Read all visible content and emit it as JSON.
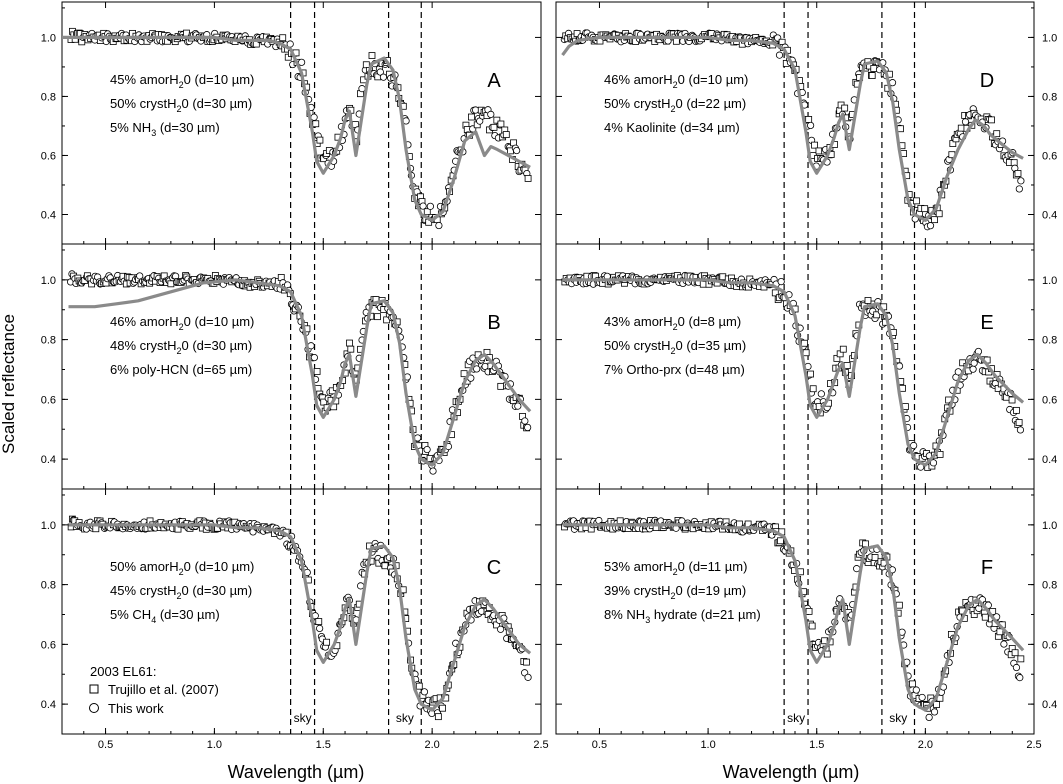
{
  "figure": {
    "ylabel": "Scaled reflectance",
    "xlabel_parts": [
      "Wavelength (",
      "µm",
      ")"
    ],
    "sky_label": "sky",
    "legend": {
      "title": "2003 EL61:",
      "entries": [
        {
          "marker": "square",
          "label": "Trujillo et al. (2007)"
        },
        {
          "marker": "circle",
          "label": "This work"
        }
      ]
    }
  },
  "chart_data": [
    {
      "type": "scatter",
      "panel": "A",
      "xlim": [
        0.3,
        2.5
      ],
      "ylim": [
        0.3,
        1.12
      ],
      "xticks": [
        0.5,
        1.0,
        1.5,
        2.0,
        2.5
      ],
      "yticks": [
        0.4,
        0.6,
        0.8,
        1.0
      ],
      "sky_lines": [
        1.35,
        1.46,
        1.8,
        1.95
      ],
      "model_lines": [
        [
          {
            "p": "45% amorH",
            "sub": "2",
            "s": "0 (d=10 ",
            "mu": "µ",
            "e": "m)"
          }
        ],
        [
          {
            "p": "50% crystH",
            "sub": "2",
            "s": "0 (d=30 ",
            "mu": "µ",
            "e": "m)"
          }
        ],
        [
          {
            "p": "5% NH",
            "sub": "3",
            "s": " (d=30 ",
            "mu": "µ",
            "e": "m)"
          }
        ]
      ],
      "model_curve": {
        "x": [
          0.3,
          0.55,
          0.8,
          1.0,
          1.1,
          1.25,
          1.3,
          1.35,
          1.4,
          1.45,
          1.47,
          1.5,
          1.55,
          1.58,
          1.6,
          1.62,
          1.65,
          1.7,
          1.72,
          1.78,
          1.82,
          1.85,
          1.88,
          1.92,
          1.95,
          2.0,
          2.05,
          2.1,
          2.15,
          2.2,
          2.22,
          2.24,
          2.27,
          2.3,
          2.35,
          2.4,
          2.45
        ],
        "y": [
          1.0,
          1.0,
          1.0,
          1.0,
          0.99,
          0.99,
          0.98,
          0.96,
          0.88,
          0.68,
          0.58,
          0.54,
          0.6,
          0.66,
          0.72,
          0.75,
          0.6,
          0.84,
          0.91,
          0.93,
          0.89,
          0.79,
          0.62,
          0.45,
          0.4,
          0.38,
          0.41,
          0.52,
          0.65,
          0.68,
          0.64,
          0.6,
          0.63,
          0.62,
          0.6,
          0.58,
          0.56
        ]
      }
    },
    {
      "type": "scatter",
      "panel": "D",
      "xlim": [
        0.3,
        2.5
      ],
      "ylim": [
        0.3,
        1.12
      ],
      "xticks": [
        0.5,
        1.0,
        1.5,
        2.0,
        2.5
      ],
      "yticks": [
        0.4,
        0.6,
        0.8,
        1.0
      ],
      "sky_lines": [
        1.35,
        1.46,
        1.8,
        1.95
      ],
      "model_lines": [
        [
          {
            "p": "46% amorH",
            "sub": "2",
            "s": "0 (d=10 ",
            "mu": "µ",
            "e": "m)"
          }
        ],
        [
          {
            "p": "50% crystH",
            "sub": "2",
            "s": "0 (d=22 ",
            "mu": "µ",
            "e": "m)"
          }
        ],
        [
          {
            "p": "4% Kaolinite (d=34 ",
            "sub": "",
            "s": "",
            "mu": "µ",
            "e": "m)"
          }
        ]
      ],
      "model_curve": {
        "x": [
          0.33,
          0.36,
          0.4,
          0.5,
          0.7,
          1.0,
          1.1,
          1.2,
          1.3,
          1.35,
          1.4,
          1.45,
          1.47,
          1.5,
          1.55,
          1.58,
          1.6,
          1.62,
          1.65,
          1.7,
          1.72,
          1.78,
          1.82,
          1.85,
          1.88,
          1.92,
          1.95,
          2.0,
          2.05,
          2.1,
          2.15,
          2.2,
          2.23,
          2.27,
          2.3,
          2.35,
          2.4,
          2.45
        ],
        "y": [
          0.94,
          0.97,
          0.99,
          1.0,
          1.0,
          1.0,
          0.99,
          0.99,
          0.98,
          0.96,
          0.89,
          0.68,
          0.58,
          0.54,
          0.6,
          0.66,
          0.71,
          0.74,
          0.62,
          0.84,
          0.91,
          0.92,
          0.88,
          0.78,
          0.62,
          0.45,
          0.4,
          0.38,
          0.42,
          0.53,
          0.62,
          0.69,
          0.72,
          0.7,
          0.67,
          0.64,
          0.61,
          0.59
        ]
      }
    },
    {
      "type": "scatter",
      "panel": "B",
      "xlim": [
        0.3,
        2.5
      ],
      "ylim": [
        0.3,
        1.12
      ],
      "xticks": [
        0.5,
        1.0,
        1.5,
        2.0,
        2.5
      ],
      "yticks": [
        0.4,
        0.6,
        0.8,
        1.0
      ],
      "sky_lines": [
        1.35,
        1.46,
        1.8,
        1.95
      ],
      "model_lines": [
        [
          {
            "p": "46% amorH",
            "sub": "2",
            "s": "0 (d=10 ",
            "mu": "µ",
            "e": "m)"
          }
        ],
        [
          {
            "p": "48% crystH",
            "sub": "2",
            "s": "0 (d=30 ",
            "mu": "µ",
            "e": "m)"
          }
        ],
        [
          {
            "p": "6% poly-HCN (d=65 ",
            "sub": "",
            "s": "",
            "mu": "µ",
            "e": "m)"
          }
        ]
      ],
      "model_curve": {
        "x": [
          0.33,
          0.45,
          0.55,
          0.65,
          0.75,
          0.85,
          0.95,
          1.1,
          1.2,
          1.3,
          1.35,
          1.4,
          1.45,
          1.47,
          1.5,
          1.55,
          1.58,
          1.6,
          1.62,
          1.65,
          1.7,
          1.72,
          1.78,
          1.82,
          1.85,
          1.88,
          1.92,
          1.95,
          2.0,
          2.05,
          2.1,
          2.15,
          2.2,
          2.24,
          2.28,
          2.32,
          2.36,
          2.4,
          2.45
        ],
        "y": [
          0.91,
          0.91,
          0.92,
          0.93,
          0.95,
          0.97,
          0.99,
          1.0,
          0.99,
          0.98,
          0.96,
          0.88,
          0.68,
          0.58,
          0.54,
          0.6,
          0.66,
          0.72,
          0.75,
          0.61,
          0.84,
          0.92,
          0.93,
          0.89,
          0.79,
          0.62,
          0.45,
          0.4,
          0.38,
          0.42,
          0.54,
          0.66,
          0.73,
          0.75,
          0.72,
          0.68,
          0.64,
          0.6,
          0.56
        ]
      }
    },
    {
      "type": "scatter",
      "panel": "E",
      "xlim": [
        0.3,
        2.5
      ],
      "ylim": [
        0.3,
        1.12
      ],
      "xticks": [
        0.5,
        1.0,
        1.5,
        2.0,
        2.5
      ],
      "yticks": [
        0.4,
        0.6,
        0.8,
        1.0
      ],
      "sky_lines": [
        1.35,
        1.46,
        1.8,
        1.95
      ],
      "model_lines": [
        [
          {
            "p": "43% amorH",
            "sub": "2",
            "s": "0 (d=8 ",
            "mu": "µ",
            "e": "m)"
          }
        ],
        [
          {
            "p": "50% crystH",
            "sub": "2",
            "s": "0 (d=35 ",
            "mu": "µ",
            "e": "m)"
          }
        ],
        [
          {
            "p": "7% Ortho-prx (d=48 ",
            "sub": "",
            "s": "",
            "mu": "µ",
            "e": "m)"
          }
        ]
      ],
      "model_curve": {
        "x": [
          0.33,
          0.5,
          0.7,
          1.0,
          1.1,
          1.2,
          1.3,
          1.35,
          1.4,
          1.45,
          1.47,
          1.5,
          1.55,
          1.58,
          1.6,
          1.62,
          1.65,
          1.7,
          1.72,
          1.78,
          1.82,
          1.85,
          1.88,
          1.92,
          1.95,
          2.0,
          2.05,
          2.1,
          2.15,
          2.2,
          2.24,
          2.28,
          2.32,
          2.36,
          2.4,
          2.45
        ],
        "y": [
          1.0,
          1.0,
          1.0,
          1.0,
          0.99,
          0.99,
          0.98,
          0.96,
          0.88,
          0.68,
          0.58,
          0.54,
          0.6,
          0.66,
          0.7,
          0.72,
          0.61,
          0.84,
          0.91,
          0.92,
          0.88,
          0.78,
          0.62,
          0.45,
          0.4,
          0.38,
          0.42,
          0.54,
          0.66,
          0.73,
          0.75,
          0.72,
          0.68,
          0.65,
          0.62,
          0.59
        ]
      }
    },
    {
      "type": "scatter",
      "panel": "C",
      "xlim": [
        0.3,
        2.5
      ],
      "ylim": [
        0.3,
        1.12
      ],
      "xticks": [
        0.5,
        1.0,
        1.5,
        2.0,
        2.5
      ],
      "yticks": [
        0.4,
        0.6,
        0.8,
        1.0
      ],
      "sky_lines": [
        1.35,
        1.46,
        1.8,
        1.95
      ],
      "model_lines": [
        [
          {
            "p": "50% amorH",
            "sub": "2",
            "s": "0 (d=10 ",
            "mu": "µ",
            "e": "m)"
          }
        ],
        [
          {
            "p": "45% crystH",
            "sub": "2",
            "s": "0 (d=30 ",
            "mu": "µ",
            "e": "m)"
          }
        ],
        [
          {
            "p": "5% CH",
            "sub": "4",
            "s": " (d=30 ",
            "mu": "µ",
            "e": "m)"
          }
        ]
      ],
      "model_curve": {
        "x": [
          0.33,
          0.5,
          0.7,
          1.0,
          1.1,
          1.2,
          1.3,
          1.35,
          1.4,
          1.45,
          1.47,
          1.5,
          1.55,
          1.58,
          1.6,
          1.62,
          1.65,
          1.7,
          1.72,
          1.78,
          1.82,
          1.85,
          1.88,
          1.92,
          1.95,
          2.0,
          2.05,
          2.1,
          2.15,
          2.2,
          2.24,
          2.28,
          2.32,
          2.36,
          2.4,
          2.45
        ],
        "y": [
          1.0,
          1.0,
          1.0,
          1.0,
          0.99,
          0.99,
          0.98,
          0.96,
          0.88,
          0.68,
          0.58,
          0.54,
          0.6,
          0.66,
          0.72,
          0.75,
          0.6,
          0.84,
          0.92,
          0.93,
          0.89,
          0.79,
          0.62,
          0.45,
          0.4,
          0.38,
          0.42,
          0.54,
          0.66,
          0.73,
          0.75,
          0.72,
          0.68,
          0.64,
          0.6,
          0.57
        ]
      }
    },
    {
      "type": "scatter",
      "panel": "F",
      "xlim": [
        0.3,
        2.5
      ],
      "ylim": [
        0.3,
        1.12
      ],
      "xticks": [
        0.5,
        1.0,
        1.5,
        2.0,
        2.5
      ],
      "yticks": [
        0.4,
        0.6,
        0.8,
        1.0
      ],
      "sky_lines": [
        1.35,
        1.46,
        1.8,
        1.95
      ],
      "model_lines": [
        [
          {
            "p": "53% amorH",
            "sub": "2",
            "s": "0 (d=11 ",
            "mu": "µ",
            "e": "m)"
          }
        ],
        [
          {
            "p": "39% crystH",
            "sub": "2",
            "s": "0 (d=19 ",
            "mu": "µ",
            "e": "m)"
          }
        ],
        [
          {
            "p": "8% NH",
            "sub": "3",
            "s": " hydrate (d=21 ",
            "mu": "µ",
            "e": "m)"
          }
        ]
      ],
      "model_curve": {
        "x": [
          0.33,
          0.5,
          0.7,
          1.0,
          1.1,
          1.2,
          1.3,
          1.35,
          1.4,
          1.45,
          1.47,
          1.5,
          1.55,
          1.58,
          1.6,
          1.62,
          1.65,
          1.7,
          1.72,
          1.78,
          1.82,
          1.85,
          1.88,
          1.92,
          1.95,
          2.0,
          2.05,
          2.1,
          2.15,
          2.2,
          2.24,
          2.28,
          2.32,
          2.36,
          2.4,
          2.45
        ],
        "y": [
          1.0,
          1.0,
          1.0,
          1.0,
          0.99,
          0.99,
          0.98,
          0.96,
          0.88,
          0.68,
          0.58,
          0.54,
          0.6,
          0.66,
          0.72,
          0.75,
          0.6,
          0.84,
          0.92,
          0.93,
          0.89,
          0.79,
          0.62,
          0.45,
          0.4,
          0.38,
          0.42,
          0.54,
          0.66,
          0.73,
          0.75,
          0.72,
          0.68,
          0.65,
          0.62,
          0.58
        ]
      }
    }
  ],
  "observed_spectrum": {
    "x": [
      0.33,
      0.38,
      0.45,
      0.55,
      0.65,
      0.75,
      0.85,
      0.95,
      1.05,
      1.15,
      1.25,
      1.3,
      1.35,
      1.4,
      1.45,
      1.5,
      1.55,
      1.58,
      1.6,
      1.62,
      1.65,
      1.68,
      1.7,
      1.72,
      1.75,
      1.8,
      1.85,
      1.88,
      1.9,
      1.92,
      1.95,
      2.0,
      2.03,
      2.06,
      2.1,
      2.15,
      2.2,
      2.25,
      2.3,
      2.35,
      2.4,
      2.43
    ],
    "y": [
      1.01,
      1.0,
      1.0,
      1.0,
      1.0,
      1.0,
      1.0,
      1.0,
      1.0,
      0.99,
      0.99,
      0.98,
      0.95,
      0.88,
      0.74,
      0.58,
      0.6,
      0.66,
      0.72,
      0.76,
      0.66,
      0.82,
      0.9,
      0.91,
      0.9,
      0.89,
      0.82,
      0.7,
      0.58,
      0.47,
      0.42,
      0.39,
      0.39,
      0.42,
      0.55,
      0.67,
      0.73,
      0.73,
      0.69,
      0.64,
      0.58,
      0.52
    ]
  },
  "colors": {
    "model": "#8a8a8a",
    "axis": "#000000"
  }
}
